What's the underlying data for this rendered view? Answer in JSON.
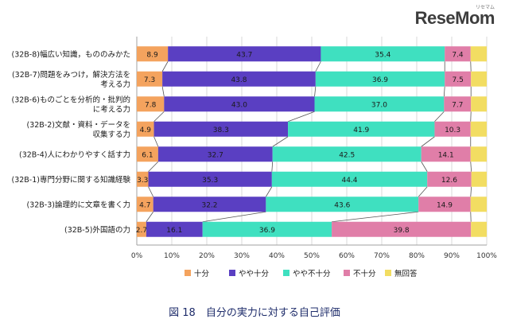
{
  "logo": {
    "text": "ReseMom",
    "kana": "リセマム"
  },
  "chart_data": {
    "type": "bar",
    "stacked": true,
    "orientation": "horizontal",
    "percent": true,
    "categories": [
      [
        "(32B-8)幅広い知識，もののみかた"
      ],
      [
        "(32B-7)問題をみつけ，解決方法を",
        "考える力"
      ],
      [
        "(32B-6)ものごとを分析的・批判的",
        "に考える力"
      ],
      [
        "(32B-2)文献・資料・データを",
        "収集する力"
      ],
      [
        "(32B-4)人にわかりやすく話す力"
      ],
      [
        "(32B-1)専門分野に関する知識経験"
      ],
      [
        "(32B-3)論理的に文章を書く力"
      ],
      [
        "(32B-5)外国語の力"
      ]
    ],
    "series": [
      {
        "name": "十分",
        "color": "#f4a35e",
        "values": [
          8.9,
          7.3,
          7.8,
          4.9,
          6.1,
          3.3,
          4.7,
          2.7
        ],
        "labels": [
          "8.9",
          "7.3",
          "7.8",
          "4.9",
          "6.1",
          "3.3",
          "4.7",
          "2.7"
        ]
      },
      {
        "name": "やや十分",
        "color": "#5a3fc2",
        "values": [
          43.7,
          43.8,
          43.0,
          38.3,
          32.7,
          35.3,
          32.2,
          16.1
        ],
        "labels": [
          "43.7",
          "43.8",
          "43.0",
          "38.3",
          "32.7",
          "35.3",
          "32.2",
          "16.1"
        ]
      },
      {
        "name": "やや不十分",
        "color": "#3fe0c0",
        "values": [
          35.4,
          36.9,
          37.0,
          41.9,
          42.5,
          44.4,
          43.6,
          36.9
        ],
        "labels": [
          "35.4",
          "36.9",
          "37.0",
          "41.9",
          "42.5",
          "44.4",
          "43.6",
          "36.9"
        ]
      },
      {
        "name": "不十分",
        "color": "#e07ea8",
        "values": [
          7.4,
          7.5,
          7.7,
          10.3,
          14.1,
          12.6,
          14.9,
          39.8
        ],
        "labels": [
          "7.4",
          "7.5",
          "7.7",
          "10.3",
          "14.1",
          "12.6",
          "14.9",
          "39.8"
        ]
      },
      {
        "name": "無回答",
        "color": "#f2dd62",
        "values": [
          4.6,
          4.5,
          4.5,
          4.6,
          4.6,
          4.4,
          4.6,
          4.5
        ],
        "labels": [
          "",
          "",
          "",
          "",
          "",
          "",
          "",
          ""
        ]
      }
    ],
    "xlim": [
      0,
      100
    ],
    "ticks": [
      0,
      10,
      20,
      30,
      40,
      50,
      60,
      70,
      80,
      90,
      100
    ],
    "tick_labels": [
      "0%",
      "10%",
      "20%",
      "30%",
      "40%",
      "50%",
      "60%",
      "70%",
      "80%",
      "90%",
      "100%"
    ],
    "title": "図 18　自分の実力に対する自己評価",
    "legend_position": "bottom"
  }
}
